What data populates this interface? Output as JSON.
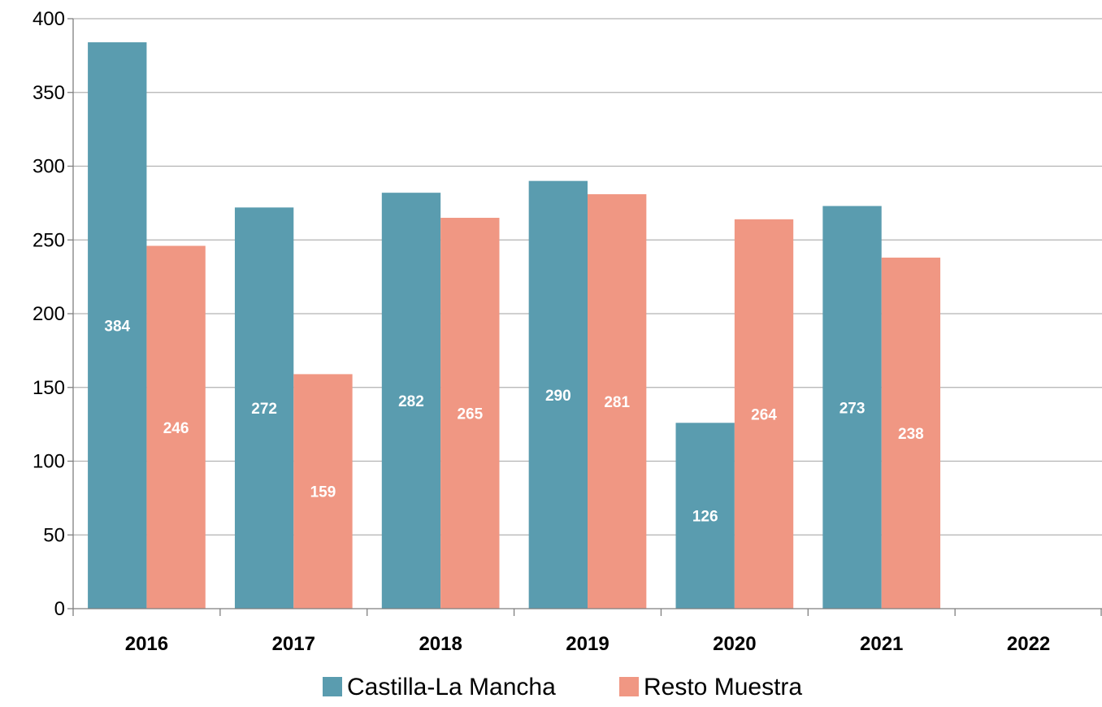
{
  "chart_data": {
    "type": "bar",
    "categories": [
      "2016",
      "2017",
      "2018",
      "2019",
      "2020",
      "2021",
      "2022"
    ],
    "series": [
      {
        "name": "Castilla-La Mancha",
        "values": [
          384,
          272,
          282,
          290,
          126,
          273,
          null
        ],
        "color": "#5a9caf"
      },
      {
        "name": "Resto Muestra",
        "values": [
          246,
          159,
          265,
          281,
          264,
          238,
          null
        ],
        "color": "#f09783"
      }
    ],
    "title": "",
    "xlabel": "",
    "ylabel": "",
    "ylim": [
      0,
      400
    ],
    "yticks": [
      0,
      50,
      100,
      150,
      200,
      250,
      300,
      350,
      400
    ],
    "grid": true,
    "legend": "bottom",
    "data_labels": "inside-middle"
  }
}
